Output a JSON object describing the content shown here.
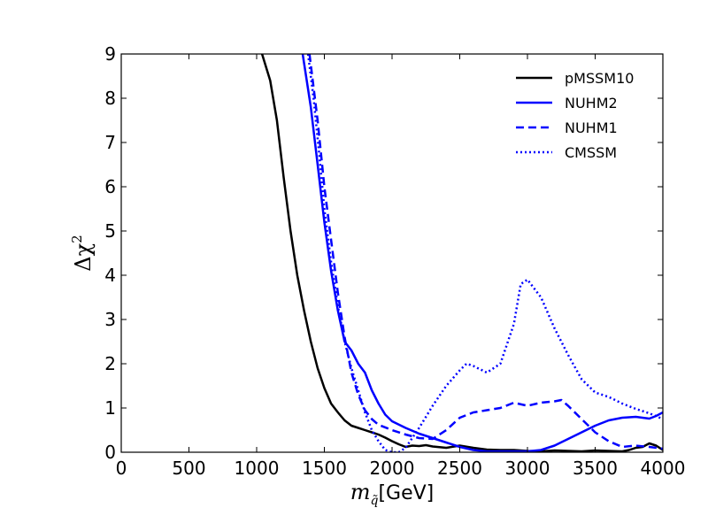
{
  "chart_data": {
    "type": "line",
    "title": "",
    "xlabel": "m_q̃ [GeV]",
    "xlabel_main": "m",
    "xlabel_sub": "q̃",
    "xlabel_unit": "[GeV]",
    "ylabel": "Δχ²",
    "ylabel_main": "Δχ",
    "ylabel_sup": "2",
    "xlim": [
      0,
      4000
    ],
    "ylim": [
      0,
      9
    ],
    "xticks": [
      0,
      500,
      1000,
      1500,
      2000,
      2500,
      3000,
      3500,
      4000
    ],
    "yticks": [
      0,
      1,
      2,
      3,
      4,
      5,
      6,
      7,
      8,
      9
    ],
    "grid": false,
    "legend_position": "top-right",
    "series": [
      {
        "name": "pMSSM10",
        "color": "#000000",
        "style": "solid",
        "x": [
          1040,
          1100,
          1150,
          1200,
          1250,
          1300,
          1350,
          1400,
          1450,
          1500,
          1550,
          1600,
          1650,
          1700,
          1750,
          1800,
          1850,
          1900,
          1950,
          2000,
          2050,
          2100,
          2150,
          2200,
          2250,
          2300,
          2400,
          2500,
          2600,
          2700,
          2800,
          2900,
          3000,
          3100,
          3200,
          3300,
          3400,
          3500,
          3600,
          3700,
          3750,
          3800,
          3850,
          3900,
          3950,
          4000
        ],
        "y": [
          9,
          8.4,
          7.5,
          6.2,
          5.0,
          4.0,
          3.2,
          2.5,
          1.9,
          1.45,
          1.1,
          0.9,
          0.72,
          0.6,
          0.55,
          0.5,
          0.45,
          0.4,
          0.33,
          0.25,
          0.18,
          0.12,
          0.15,
          0.14,
          0.16,
          0.13,
          0.1,
          0.15,
          0.1,
          0.06,
          0.05,
          0.05,
          0.03,
          0.02,
          0.04,
          0.03,
          0.02,
          0.04,
          0.03,
          0.02,
          0.05,
          0.1,
          0.12,
          0.2,
          0.15,
          0.05
        ]
      },
      {
        "name": "NUHM2",
        "color": "#0000ff",
        "style": "solid",
        "x": [
          1340,
          1400,
          1450,
          1500,
          1550,
          1600,
          1650,
          1700,
          1750,
          1800,
          1850,
          1900,
          1950,
          2000,
          2100,
          2200,
          2300,
          2400,
          2500,
          2600,
          2700,
          2800,
          2900,
          3000,
          3100,
          3200,
          3300,
          3400,
          3500,
          3600,
          3700,
          3800,
          3850,
          3900,
          3950,
          4000
        ],
        "y": [
          9,
          7.8,
          6.5,
          5.2,
          4.1,
          3.2,
          2.5,
          2.3,
          2.0,
          1.8,
          1.4,
          1.1,
          0.85,
          0.7,
          0.55,
          0.42,
          0.32,
          0.22,
          0.12,
          0.05,
          0.02,
          0.02,
          0.02,
          0.02,
          0.05,
          0.15,
          0.3,
          0.45,
          0.6,
          0.72,
          0.78,
          0.8,
          0.78,
          0.76,
          0.82,
          0.9
        ]
      },
      {
        "name": "NUHM1",
        "color": "#0000ff",
        "style": "dashed",
        "x": [
          1390,
          1450,
          1500,
          1550,
          1600,
          1650,
          1700,
          1750,
          1800,
          1850,
          1900,
          2000,
          2100,
          2200,
          2300,
          2400,
          2500,
          2600,
          2700,
          2800,
          2900,
          3000,
          3100,
          3200,
          3250,
          3300,
          3400,
          3500,
          3600,
          3700,
          3800,
          3900,
          4000
        ],
        "y": [
          9,
          7.5,
          6.0,
          4.8,
          3.6,
          2.6,
          1.8,
          1.3,
          0.95,
          0.75,
          0.62,
          0.5,
          0.4,
          0.32,
          0.3,
          0.5,
          0.78,
          0.9,
          0.95,
          1.0,
          1.12,
          1.05,
          1.12,
          1.15,
          1.18,
          1.05,
          0.75,
          0.45,
          0.25,
          0.12,
          0.15,
          0.12,
          0.08
        ]
      },
      {
        "name": "CMSSM",
        "color": "#0000ff",
        "style": "dotted",
        "x": [
          1380,
          1420,
          1460,
          1500,
          1550,
          1600,
          1650,
          1700,
          1750,
          1800,
          1850,
          1900,
          1950,
          2000,
          2050,
          2100,
          2200,
          2300,
          2400,
          2500,
          2550,
          2600,
          2700,
          2800,
          2900,
          2950,
          3000,
          3100,
          3200,
          3300,
          3400,
          3500,
          3600,
          3700,
          3800,
          3900,
          4000
        ],
        "y": [
          9,
          8.0,
          6.8,
          5.5,
          4.3,
          3.3,
          2.5,
          1.9,
          1.4,
          0.9,
          0.5,
          0.25,
          0.05,
          0.0,
          0.0,
          0.1,
          0.55,
          1.05,
          1.5,
          1.85,
          2.0,
          1.95,
          1.8,
          2.0,
          2.9,
          3.8,
          3.9,
          3.5,
          2.8,
          2.2,
          1.65,
          1.35,
          1.25,
          1.1,
          0.98,
          0.88,
          0.75
        ]
      }
    ]
  }
}
